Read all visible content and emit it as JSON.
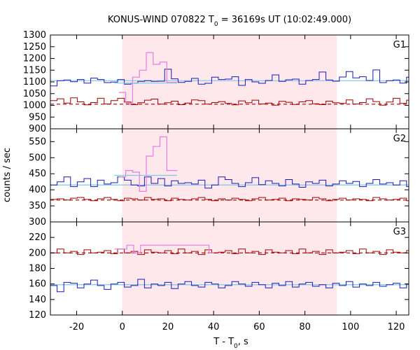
{
  "chart_data": {
    "type": "line",
    "title_main": "KONUS-WIND 070822 T",
    "title_sub": "0",
    "title_rest": " = 36169s UT (10:02:49.000)",
    "xlabel_main": "T - T",
    "xlabel_sub": "0",
    "xlabel_rest": ", s",
    "ylabel": "counts / sec",
    "xlim": [
      -31.5,
      125.5
    ],
    "xticks": [
      -20,
      0,
      20,
      40,
      60,
      80,
      100,
      120
    ],
    "shade_region": [
      0,
      94
    ],
    "colors": {
      "blue": "#1a1ab0",
      "red": "#a00000",
      "cyan": "#7fc6e8",
      "pink": "#e57de0",
      "shade": "#ffe8ec"
    },
    "bin_width": 2.944,
    "panels": [
      {
        "name": "G1",
        "ylim": [
          900,
          1300
        ],
        "yticks": [
          900,
          950,
          1000,
          1050,
          1100,
          1150,
          1200,
          1250,
          1300
        ],
        "blue_bg": 1105,
        "red_bg": 1005,
        "blue": [
          1083,
          1105,
          1108,
          1101,
          1110,
          1095,
          1116,
          1110,
          1097,
          1099,
          1110,
          1090,
          1095,
          1102,
          1105,
          1102,
          1103,
          1154,
          1113,
          1098,
          1102,
          1115,
          1090,
          1094,
          1120,
          1110,
          1112,
          1122,
          1085,
          1110,
          1100,
          1094,
          1106,
          1130,
          1102,
          1109,
          1112,
          1090,
          1106,
          1110,
          1142,
          1108,
          1103,
          1121,
          1144,
          1117,
          1122,
          1106,
          1151,
          1097,
          1105,
          1108,
          1095,
          1120,
          1098,
          1112,
          1104,
          1088,
          1124,
          1105,
          1085,
          1103,
          1090,
          1105,
          1112,
          1108,
          1090,
          1118,
          1110,
          1083,
          1106,
          1118,
          1091,
          1093,
          1125,
          1078,
          1118,
          1110,
          1095,
          1108,
          1085,
          1097,
          1106,
          1110,
          1098,
          1103,
          1090,
          1108,
          1096,
          1110,
          1100,
          1101,
          1093,
          1070,
          1103,
          1085,
          1112,
          1106,
          1098,
          1110,
          1106,
          1090,
          1110,
          1078,
          1105,
          1092,
          1103,
          1095,
          1105,
          1110,
          1082,
          1114,
          1106,
          1076,
          1090,
          1116,
          1096,
          1103,
          1111,
          1093,
          1102,
          1107,
          1104,
          1085,
          1118,
          1095,
          1110,
          1072,
          1088,
          1102,
          1096,
          1112,
          1087,
          1105,
          1090,
          1098,
          1106,
          1111,
          1092,
          1102,
          1098,
          1101,
          1105,
          1093,
          1097,
          1110,
          1085,
          1102,
          1079,
          1111,
          1099,
          1103,
          1094,
          1106,
          1087,
          1105,
          1118,
          1092,
          1099,
          1106,
          1101,
          1095,
          1108,
          1090,
          1103,
          1099,
          1112
        ],
        "red": [
          1020,
          1028,
          1010,
          1032,
          1015,
          1002,
          1012,
          1030,
          1006,
          1020,
          1030,
          1014,
          1003,
          1011,
          1022,
          1027,
          1005,
          1011,
          1018,
          1003,
          1010,
          1023,
          1020,
          1005,
          1012,
          1016,
          1008,
          1002,
          1019,
          1011,
          1022,
          1006,
          1010,
          1001,
          1017,
          1013,
          1004,
          1015,
          1020,
          1007,
          1003,
          1018,
          1011,
          1008,
          1023,
          1006,
          1012,
          1028,
          1016,
          1001,
          1014,
          1030,
          1008,
          1022,
          1005,
          1012,
          1020,
          1004,
          1016,
          1012,
          1007,
          1021,
          1011,
          1002,
          1018,
          1009,
          1016,
          1005,
          1022,
          1010,
          1004,
          1025,
          1010,
          1015,
          1005,
          1000,
          1018,
          1012,
          1005,
          1013,
          1008,
          1020,
          1003,
          1012,
          1010,
          1005,
          1016,
          1002,
          1011,
          1014,
          1006,
          1019,
          1008,
          1013,
          1004,
          1010,
          1017,
          1009,
          1003,
          1012,
          1008,
          1000,
          1014,
          1012,
          1018,
          1005,
          1010,
          1020,
          1007,
          1012,
          1016,
          1009,
          1011,
          1004,
          1013,
          1018,
          1007,
          1012,
          1010,
          1019,
          1004,
          1012,
          1010,
          1016,
          1007,
          1003,
          1010,
          1017,
          1008,
          1013,
          1002,
          1018,
          1006,
          1011,
          1009,
          1015,
          1012,
          1004,
          1010,
          1016,
          1003,
          1011,
          1007,
          1013,
          1009,
          1005,
          1014,
          1002,
          1011,
          1016,
          1008,
          1010,
          1004,
          1013,
          1010,
          1007,
          1015,
          1009,
          1012,
          1005,
          1011,
          1008,
          1014
        ],
        "pink": [
          [
            -1.5,
            1055
          ],
          [
            1.5,
            1010
          ],
          [
            4.5,
            1120
          ],
          [
            7.5,
            1150
          ],
          [
            10.5,
            1225
          ],
          [
            13.5,
            1175
          ],
          [
            16.5,
            1185
          ],
          [
            19.5,
            1098
          ],
          [
            24,
            1098
          ]
        ],
        "cyan": [
          [
            -3.5,
            1095
          ],
          [
            24,
            1095
          ]
        ]
      },
      {
        "name": "G2",
        "ylim": [
          300,
          590
        ],
        "yticks": [
          300,
          350,
          400,
          450,
          500,
          550
        ],
        "blue_bg": 415,
        "red_bg": 368,
        "blue": [
          415,
          425,
          440,
          410,
          425,
          435,
          410,
          430,
          418,
          422,
          440,
          430,
          415,
          412,
          440,
          420,
          435,
          412,
          428,
          420,
          422,
          418,
          430,
          405,
          415,
          440,
          432,
          420,
          410,
          422,
          438,
          416,
          428,
          420,
          412,
          432,
          418,
          408,
          425,
          420,
          430,
          412,
          418,
          428,
          420,
          426,
          410,
          420,
          432,
          418,
          422,
          415,
          428,
          410,
          420,
          432,
          418,
          425,
          412,
          418,
          430,
          420,
          416,
          425,
          410,
          420,
          428,
          415,
          420,
          410,
          425,
          418,
          412,
          428,
          420,
          415,
          422,
          430,
          410,
          420,
          418,
          425,
          412,
          420,
          432,
          418,
          410,
          428,
          420,
          415,
          425,
          418,
          412,
          430,
          420,
          418,
          422,
          410,
          428,
          415,
          420,
          425,
          412,
          418,
          430,
          420,
          416,
          425,
          410,
          420,
          428,
          415,
          420,
          410,
          425,
          418,
          412,
          428,
          420,
          415,
          422,
          430,
          410,
          420,
          418,
          425,
          412,
          420,
          432,
          418,
          410,
          428,
          420,
          415,
          425,
          418,
          412,
          430,
          420,
          418,
          422,
          410,
          428,
          415,
          420,
          425,
          412,
          418,
          430,
          420,
          416,
          425,
          410,
          420,
          428,
          415,
          420,
          410,
          425,
          418
        ],
        "red": [
          370,
          372,
          368,
          374,
          376,
          370,
          366,
          372,
          376,
          370,
          366,
          374,
          372,
          368,
          376,
          370,
          372,
          366,
          374,
          370,
          368,
          372,
          376,
          370,
          366,
          372,
          368,
          374,
          370,
          366,
          372,
          376,
          368,
          370,
          374,
          366,
          372,
          370,
          368,
          376,
          372,
          366,
          370,
          374,
          368,
          372,
          370,
          366,
          376,
          372,
          368,
          370,
          374,
          366,
          372,
          370,
          368,
          376,
          372,
          366,
          370,
          374,
          368,
          372,
          370,
          366,
          376,
          372,
          368,
          370,
          374,
          366,
          372,
          370,
          368,
          376,
          372,
          366,
          370,
          374,
          368,
          372,
          370,
          366,
          376,
          372,
          368,
          370,
          374,
          366,
          372,
          370,
          368,
          376,
          372,
          366,
          370,
          374,
          368,
          372,
          370,
          366,
          376,
          372,
          368,
          370,
          374,
          366,
          372,
          370,
          368,
          376,
          372,
          366,
          370,
          374,
          368,
          372,
          370,
          366,
          376,
          372,
          368,
          370,
          374,
          366,
          372,
          370,
          368,
          376,
          372,
          366,
          370,
          374,
          368,
          372,
          370,
          366,
          376,
          372,
          368,
          370,
          374,
          366,
          372,
          370,
          368,
          376,
          372,
          366,
          370,
          374,
          368,
          372,
          370,
          366,
          376,
          372,
          368,
          370,
          374,
          366
        ],
        "pink": [
          [
            -1.5,
            440
          ],
          [
            1.5,
            460
          ],
          [
            4.5,
            455
          ],
          [
            7.5,
            395
          ],
          [
            10.5,
            505
          ],
          [
            13.5,
            535
          ],
          [
            16.5,
            565
          ],
          [
            19.5,
            460
          ],
          [
            24,
            460
          ]
        ],
        "cyan": [
          [
            -3.5,
            445
          ],
          [
            24,
            445
          ]
        ]
      },
      {
        "name": "G3",
        "ylim": [
          120,
          240
        ],
        "yticks": [
          120,
          140,
          160,
          180,
          200,
          220
        ],
        "blue_bg": 159,
        "red_bg": 200,
        "blue": [
          158,
          150,
          162,
          161,
          155,
          160,
          165,
          158,
          153,
          160,
          162,
          156,
          158,
          166,
          155,
          160,
          158,
          162,
          154,
          160,
          163,
          158,
          156,
          162,
          160,
          155,
          158,
          163,
          160,
          157,
          162,
          159,
          155,
          161,
          158,
          163,
          156,
          160,
          162,
          157,
          159,
          155,
          161,
          158,
          163,
          156,
          160,
          158,
          162,
          157,
          159,
          161,
          155,
          160,
          163,
          158,
          156,
          162,
          160,
          157,
          159,
          161,
          158,
          156,
          162,
          160,
          158,
          155,
          161,
          158,
          160,
          162,
          156,
          159,
          161,
          158,
          157,
          162,
          160,
          155,
          159,
          161,
          158,
          156,
          162,
          160,
          158,
          157,
          161,
          159,
          156,
          162,
          158,
          160,
          157,
          161,
          159,
          155,
          162,
          160,
          158,
          157,
          161,
          159,
          156,
          162,
          158,
          160,
          157,
          161,
          159,
          155,
          162,
          160,
          158,
          157,
          161,
          159,
          156,
          162,
          158,
          160,
          157,
          161,
          159,
          155,
          162,
          160,
          158,
          157,
          161,
          159,
          156,
          162,
          158,
          160,
          157,
          161,
          159,
          155,
          162,
          160,
          158,
          157,
          161,
          159,
          156,
          162,
          158,
          160,
          157,
          161,
          159,
          155,
          162,
          160,
          158,
          157,
          161,
          159,
          156,
          162,
          158,
          160
        ],
        "red": [
          200,
          205,
          200,
          202,
          198,
          204,
          200,
          201,
          203,
          199,
          205,
          200,
          202,
          198,
          204,
          201,
          200,
          203,
          199,
          205,
          200,
          202,
          198,
          204,
          200,
          201,
          203,
          199,
          205,
          200,
          202,
          198,
          204,
          201,
          200,
          203,
          199,
          205,
          200,
          202,
          198,
          204,
          200,
          201,
          203,
          199,
          205,
          200,
          202,
          198,
          204,
          201,
          200,
          203,
          199,
          205,
          200,
          202,
          198,
          204,
          200,
          201,
          203,
          199,
          205,
          200,
          202,
          198,
          204,
          201,
          200,
          203,
          199,
          205,
          200,
          202,
          198,
          204,
          200,
          201,
          203,
          199,
          205,
          200,
          202,
          198,
          204,
          201,
          200,
          203,
          199,
          205,
          200,
          202,
          198,
          204,
          200,
          201,
          203,
          199,
          205,
          200,
          202,
          198,
          204,
          201,
          200,
          203,
          199,
          205,
          200,
          202,
          198,
          204,
          200,
          201,
          203,
          199,
          205,
          200,
          202,
          198,
          204,
          201,
          200,
          203,
          199,
          205,
          200,
          202,
          198,
          204,
          200,
          201,
          203,
          199,
          205,
          200,
          202,
          198,
          204,
          201,
          200,
          203,
          199,
          205,
          200,
          202,
          198,
          204,
          200,
          201,
          203,
          199,
          205,
          200,
          202,
          198,
          204,
          201,
          200,
          203
        ],
        "pink": [
          [
            -3.5,
            205
          ],
          [
            2,
            210
          ],
          [
            5,
            200
          ],
          [
            8,
            210
          ],
          [
            38,
            200
          ],
          [
            40,
            200
          ]
        ],
        "cyan": []
      }
    ]
  }
}
